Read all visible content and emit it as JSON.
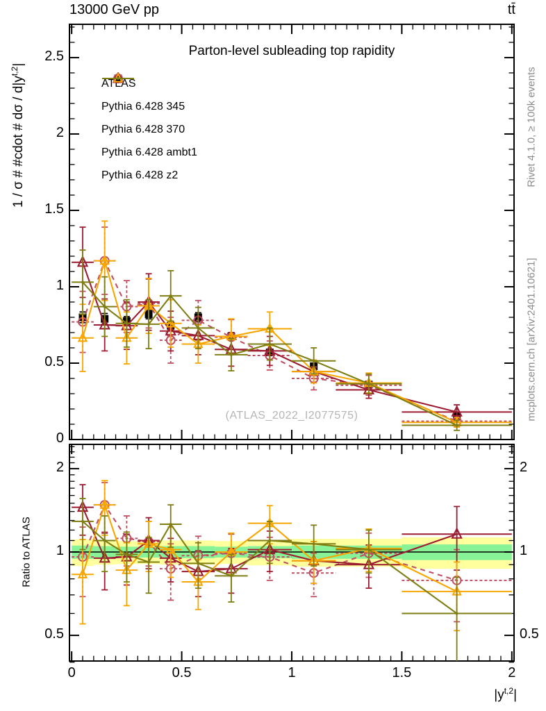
{
  "header": {
    "left": "13000 GeV pp",
    "right": "tt̄"
  },
  "watermark": "(ATLAS_2022_I2077575)",
  "side_notes": {
    "top_right": "Rivet 4.1.0, ≥ 100k events",
    "bottom_right": "mcplots.cern.ch [arXiv:2401.10621]"
  },
  "chart_data": {
    "type": "line",
    "title": "Parton-level subleading top rapidity",
    "xlabel": {
      "pre": "|y",
      "sup": "t,2",
      "post": "|"
    },
    "main_ylabel": {
      "pre": "1 / σ # #cdot # dσ / d|y",
      "sup": "t,2",
      "post": "|"
    },
    "ratio_ylabel": "Ratio to ATLAS",
    "x": {
      "min": -0.01,
      "max": 2.01,
      "majors": [
        0,
        0.5,
        1,
        1.5,
        2
      ],
      "labels": [
        "0",
        "0.5",
        "1",
        "1.5",
        "2"
      ],
      "minor_step": 0.05
    },
    "main_y": {
      "min": 0,
      "max": 2.718,
      "majors": [
        0,
        0.5,
        1,
        1.5,
        2,
        2.5
      ],
      "labels": [
        "0",
        "0.5",
        "1",
        "1.5",
        "2",
        "2.5"
      ],
      "minor_step": 0.1
    },
    "ratio_y": {
      "scale": "log",
      "min": 0.404,
      "max": 2.447,
      "majors": [
        0.5,
        1,
        2
      ],
      "labels": [
        "0.5",
        "1",
        "2"
      ],
      "minors": [
        0.4,
        0.6,
        0.7,
        0.8,
        0.9,
        1.1,
        1.2,
        1.3,
        1.4,
        1.5,
        1.6,
        1.7,
        1.8,
        1.9,
        2.1,
        2.2,
        2.3,
        2.4
      ]
    },
    "bin_edges": [
      0,
      0.1,
      0.2,
      0.3,
      0.4,
      0.5,
      0.65,
      0.8,
      1.0,
      1.2,
      1.5,
      2.0
    ],
    "bin_centers": [
      0.05,
      0.15,
      0.25,
      0.35,
      0.45,
      0.575,
      0.725,
      0.9,
      1.1,
      1.35,
      1.75
    ],
    "series": [
      {
        "id": "atlas",
        "name": "ATLAS",
        "color": "#000000",
        "marker": "square",
        "marker_size": 11,
        "line": "none",
        "in_ratio": false,
        "values": [
          0.8,
          0.79,
          0.775,
          0.82,
          0.745,
          0.8,
          0.675,
          0.57,
          0.48,
          0.36,
          0.155
        ],
        "errors": [
          0.035,
          0.035,
          0.03,
          0.03,
          0.03,
          0.03,
          0.025,
          0.02,
          0.02,
          0.015,
          0.01
        ]
      },
      {
        "id": "p345",
        "name": "Pythia 6.428 345",
        "color": "#c04f63",
        "marker": "circle",
        "marker_size": 12,
        "line": "dashed",
        "in_ratio": true,
        "values": [
          0.77,
          1.17,
          0.87,
          0.89,
          0.65,
          0.78,
          0.67,
          0.55,
          0.4,
          0.355,
          0.12
        ],
        "errors": [
          0.2,
          0.22,
          0.17,
          0.16,
          0.15,
          0.13,
          0.115,
          0.095,
          0.075,
          0.065,
          0.035
        ],
        "ratio": [
          0.96,
          1.48,
          1.12,
          1.09,
          0.87,
          0.97,
          0.99,
          0.96,
          0.84,
          0.99,
          0.79
        ],
        "ratio_errors": [
          0.27,
          0.3,
          0.23,
          0.2,
          0.2,
          0.17,
          0.17,
          0.17,
          0.15,
          0.18,
          0.23
        ]
      },
      {
        "id": "p370",
        "name": "Pythia 6.428 370",
        "color": "#9c1c32",
        "marker": "triangle",
        "marker_size": 13,
        "line": "solid",
        "in_ratio": true,
        "values": [
          1.16,
          0.75,
          0.745,
          0.9,
          0.71,
          0.68,
          0.59,
          0.58,
          0.445,
          0.325,
          0.18
        ],
        "errors": [
          0.23,
          0.17,
          0.155,
          0.185,
          0.13,
          0.125,
          0.11,
          0.095,
          0.075,
          0.055,
          0.047
        ],
        "ratio": [
          1.45,
          0.95,
          0.96,
          1.1,
          0.95,
          0.85,
          0.87,
          1.02,
          0.93,
          0.9,
          1.16
        ],
        "ratio_errors": [
          0.3,
          0.22,
          0.2,
          0.23,
          0.17,
          0.16,
          0.16,
          0.17,
          0.16,
          0.16,
          0.3
        ]
      },
      {
        "id": "ambt1",
        "name": "Pythia 6.428 ambt1",
        "color": "#f7a600",
        "marker": "triangle",
        "marker_size": 11,
        "line": "solid",
        "in_ratio": true,
        "values": [
          0.665,
          1.17,
          0.665,
          0.875,
          0.76,
          0.625,
          0.675,
          0.725,
          0.445,
          0.37,
          0.112
        ],
        "errors": [
          0.22,
          0.26,
          0.17,
          0.18,
          0.155,
          0.125,
          0.115,
          0.11,
          0.075,
          0.065,
          0.031
        ],
        "ratio": [
          0.83,
          1.48,
          0.86,
          1.07,
          1.02,
          0.78,
          1.0,
          1.27,
          0.93,
          1.03,
          0.72
        ],
        "ratio_errors": [
          0.28,
          0.33,
          0.22,
          0.22,
          0.21,
          0.16,
          0.17,
          0.2,
          0.16,
          0.18,
          0.2
        ]
      },
      {
        "id": "z2",
        "name": "Pythia 6.428 z2",
        "color": "#7e7e12",
        "marker": "dot",
        "marker_size": 4,
        "line": "solid",
        "in_ratio": true,
        "values": [
          1.03,
          0.87,
          0.76,
          0.755,
          0.94,
          0.73,
          0.555,
          0.625,
          0.515,
          0.365,
          0.093
        ],
        "errors": [
          0.21,
          0.195,
          0.155,
          0.16,
          0.165,
          0.135,
          0.105,
          0.105,
          0.085,
          0.063,
          0.033
        ],
        "ratio": [
          1.29,
          1.1,
          0.98,
          0.92,
          1.26,
          0.91,
          0.82,
          1.1,
          1.07,
          1.02,
          0.6
        ],
        "ratio_errors": [
          0.27,
          0.25,
          0.2,
          0.21,
          0.22,
          0.17,
          0.16,
          0.19,
          0.18,
          0.18,
          0.21
        ]
      }
    ],
    "ratio_reference": 1,
    "ratio_bands": {
      "yellow": {
        "color": "#ffff9e",
        "half_widths": [
          0.11,
          0.1,
          0.095,
          0.095,
          0.1,
          0.1,
          0.095,
          0.105,
          0.115,
          0.115,
          0.13
        ]
      },
      "green": {
        "color": "#87f296",
        "half_widths": [
          0.055,
          0.05,
          0.045,
          0.045,
          0.05,
          0.05,
          0.045,
          0.05,
          0.055,
          0.055,
          0.065
        ]
      }
    }
  }
}
